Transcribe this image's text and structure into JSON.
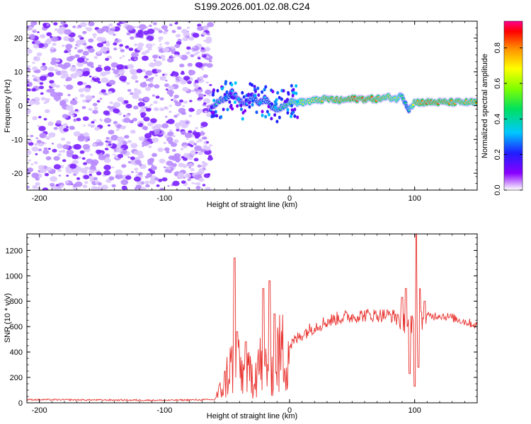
{
  "figure_title": "S199.2026.001.02.08.C24",
  "colors": {
    "snr_line": "#e8302c",
    "frame": "#000000",
    "background": "#ffffff"
  },
  "chart_data": [
    {
      "type": "heatmap",
      "name": "spectrogram",
      "xlabel": "Height of straight line (km)",
      "ylabel": "Frequency (Hz)",
      "xlim": [
        -210,
        150
      ],
      "ylim": [
        -25,
        25
      ],
      "xticks": [
        -200,
        -100,
        0,
        100
      ],
      "yticks": [
        -20,
        -10,
        0,
        10,
        20
      ],
      "xtick_labels": [
        "-200",
        "-100",
        "0",
        "100"
      ],
      "ytick_labels": [
        "-20",
        "-10",
        "0",
        "10",
        "20"
      ],
      "noise_region_x": [
        -210,
        -63
      ],
      "ridge": {
        "x": [
          -63,
          -58,
          -52,
          -46,
          -40,
          -35,
          -30,
          -25,
          -20,
          -15,
          -10,
          -5,
          0,
          10,
          20,
          30,
          40,
          50,
          60,
          70,
          80,
          85,
          90,
          95,
          100,
          110,
          120,
          130,
          140,
          150
        ],
        "f": [
          -1,
          1,
          2,
          4,
          2,
          0,
          3,
          1,
          2,
          0,
          -1,
          0,
          1,
          1,
          1.5,
          2,
          1.5,
          2,
          2,
          2,
          2.5,
          2,
          3,
          -1,
          1,
          1,
          1,
          1,
          1,
          1
        ],
        "amp": [
          0.3,
          0.45,
          0.4,
          0.35,
          0.3,
          0.35,
          0.35,
          0.4,
          0.35,
          0.4,
          0.45,
          0.5,
          0.55,
          0.65,
          0.75,
          0.82,
          0.85,
          0.9,
          0.92,
          0.85,
          0.75,
          0.7,
          0.55,
          0.4,
          0.8,
          0.9,
          0.88,
          0.85,
          0.82,
          0.8
        ]
      }
    },
    {
      "type": "colorbar",
      "name": "amplitude-colorbar",
      "label": "Normalized spectral amplitude",
      "range": [
        0,
        0.95
      ],
      "ticks": [
        0.0,
        0.2,
        0.4,
        0.6,
        0.8
      ],
      "tick_labels": [
        "0.0",
        "0.2",
        "0.4",
        "0.6",
        "0.8"
      ]
    },
    {
      "type": "line",
      "name": "snr",
      "xlabel": "Height of straight line (km)",
      "ylabel": "SNR (10 * v/v)",
      "xlim": [
        -210,
        150
      ],
      "ylim": [
        0,
        1330
      ],
      "xticks": [
        -200,
        -100,
        0,
        100
      ],
      "yticks": [
        0,
        200,
        400,
        600,
        800,
        1000,
        1200
      ],
      "xtick_labels": [
        "-200",
        "-100",
        "0",
        "100"
      ],
      "ytick_labels": [
        "0",
        "200",
        "400",
        "600",
        "800",
        "1000",
        "1200"
      ],
      "series": [
        {
          "name": "SNR",
          "envelope": {
            "x": [
              -210,
              -100,
              -60,
              -52,
              -48,
              -44,
              -40,
              -35,
              -30,
              -25,
              -20,
              -15,
              -10,
              -5,
              0,
              10,
              20,
              30,
              40,
              50,
              60,
              70,
              80,
              85,
              90,
              95,
              100,
              105,
              110,
              120,
              130,
              140,
              150
            ],
            "y": [
              25,
              20,
              25,
              150,
              280,
              300,
              260,
              200,
              230,
              300,
              280,
              330,
              360,
              400,
              450,
              540,
              600,
              640,
              670,
              680,
              690,
              690,
              690,
              680,
              650,
              620,
              600,
              640,
              680,
              690,
              670,
              640,
              610
            ]
          },
          "spikes": [
            {
              "x": -44,
              "y": 1140
            },
            {
              "x": -42,
              "y": 560
            },
            {
              "x": -35,
              "y": 480
            },
            {
              "x": -21,
              "y": 900
            },
            {
              "x": -16,
              "y": 960
            },
            {
              "x": -12,
              "y": 700
            },
            {
              "x": 90,
              "y": 830
            },
            {
              "x": 93,
              "y": 900
            },
            {
              "x": 96,
              "y": 1090
            },
            {
              "x": 101,
              "y": 1330
            },
            {
              "x": 104,
              "y": 900
            },
            {
              "x": 108,
              "y": 800
            }
          ],
          "dips": [
            {
              "x": 96,
              "y": 230
            },
            {
              "x": 100,
              "y": 130
            },
            {
              "x": 103,
              "y": 280
            }
          ]
        }
      ]
    }
  ]
}
